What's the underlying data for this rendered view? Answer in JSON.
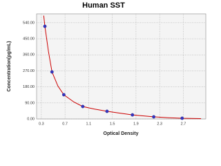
{
  "chart_data": {
    "type": "scatter",
    "title": "Human SST",
    "x_label": "Optical Density",
    "y_label": "Concentration(pg/mL)",
    "xlim": [
      0.22,
      3.08
    ],
    "ylim": [
      0,
      590
    ],
    "xticks": [
      0.3,
      0.7,
      1.1,
      1.5,
      1.9,
      2.3,
      2.7
    ],
    "yticks": [
      {
        "value": 0,
        "label": "0.00"
      },
      {
        "value": 90,
        "label": "90.00"
      },
      {
        "value": 180,
        "label": "180.00"
      },
      {
        "value": 270,
        "label": "270.00"
      },
      {
        "value": 360,
        "label": "360.00"
      },
      {
        "value": 450,
        "label": "450.00"
      },
      {
        "value": 540,
        "label": "540.00"
      }
    ],
    "grid": true,
    "series": [
      {
        "color": "#3535c0",
        "x": [
          0.36,
          0.48,
          0.68,
          1.0,
          1.41,
          1.84,
          2.2,
          2.68
        ],
        "values": [
          520,
          264,
          136,
          70,
          43,
          23,
          12,
          4
        ]
      }
    ],
    "curve": {
      "color": "#cc0000",
      "x": [
        0.34,
        0.36,
        0.42,
        0.48,
        0.58,
        0.68,
        0.85,
        1.0,
        1.2,
        1.41,
        1.6,
        1.84,
        2.0,
        2.2,
        2.45,
        2.68,
        3.0
      ],
      "values": [
        580,
        520,
        380,
        264,
        185,
        136,
        95,
        70,
        55,
        43,
        34,
        23,
        18,
        12,
        7,
        4,
        2
      ]
    }
  }
}
